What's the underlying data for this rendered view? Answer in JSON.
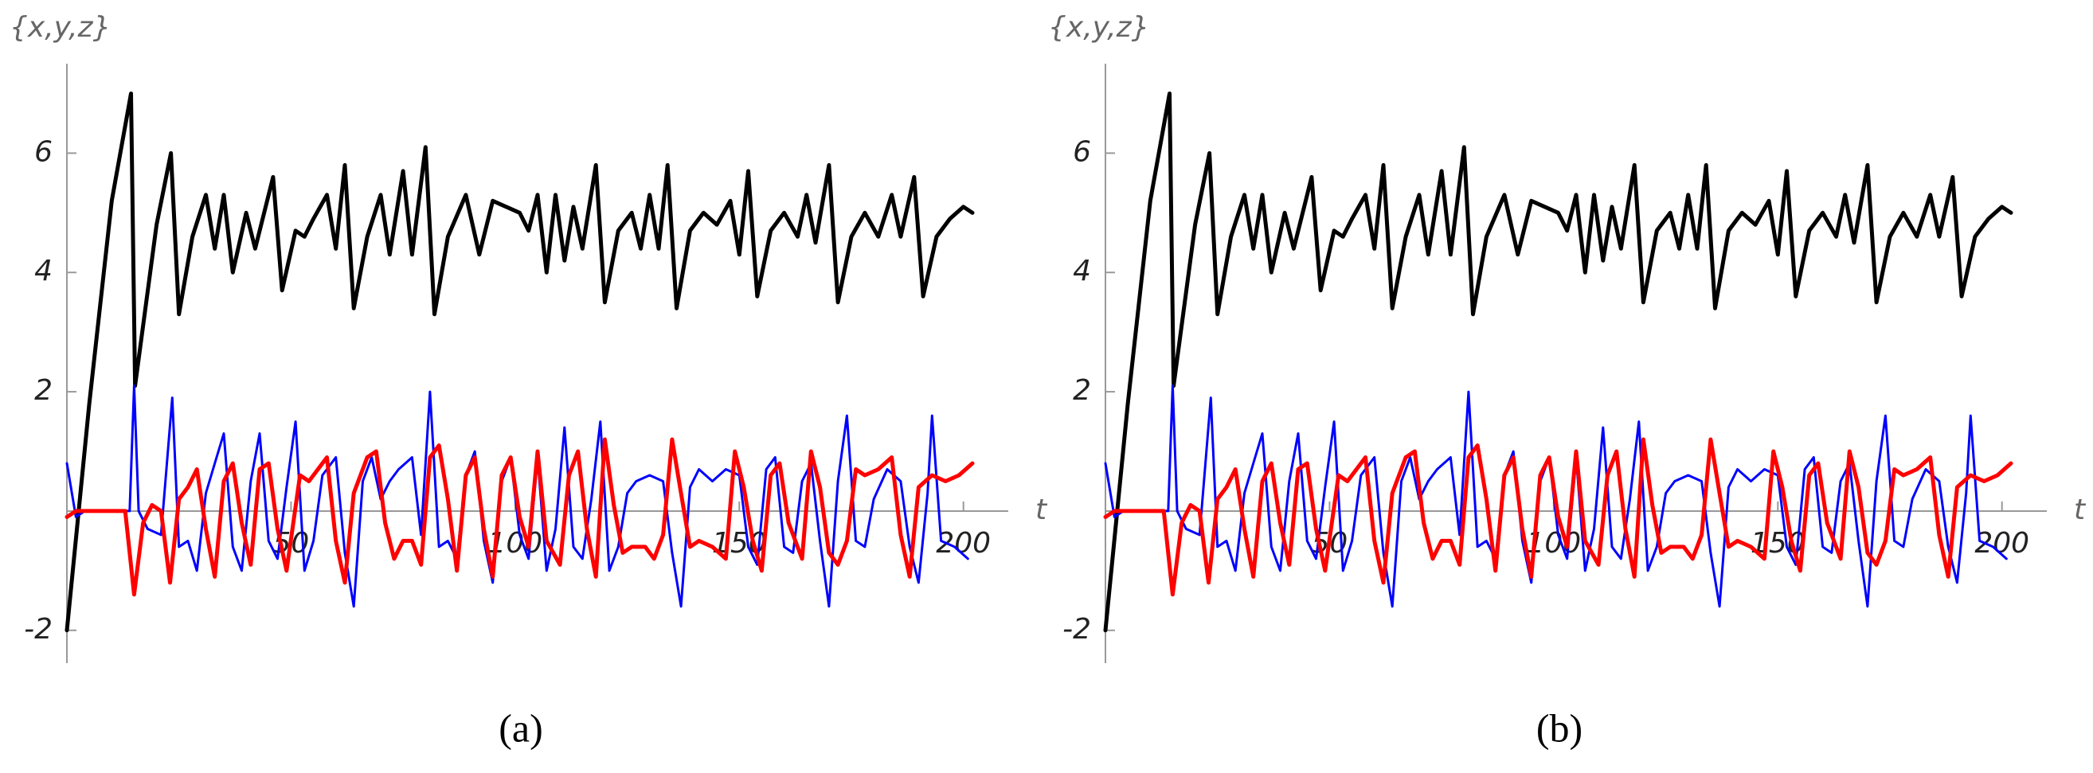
{
  "chart_data": [
    {
      "type": "line",
      "y_label": "{x,y,z}",
      "x_label": "t",
      "caption": "(a)",
      "xlim": [
        0,
        210
      ],
      "ylim": [
        -2.55,
        7.5
      ],
      "xticks": [
        50,
        100,
        150,
        200
      ],
      "yticks": [
        -2,
        2,
        4,
        6
      ],
      "series": [
        {
          "color": "#000000",
          "width": 5,
          "x": [
            0,
            5,
            10,
            14.3,
            15.2,
            20,
            23.2,
            25,
            28,
            31,
            33,
            35,
            37,
            40,
            42,
            46,
            48,
            51,
            53,
            55,
            58,
            60,
            62,
            64,
            67,
            70,
            72,
            75,
            77,
            80,
            82,
            85,
            89,
            92,
            95,
            98,
            101,
            103,
            105,
            107,
            109,
            111,
            113,
            115,
            118,
            120,
            123,
            126,
            128,
            130,
            132,
            134,
            136,
            139,
            142,
            145,
            148,
            150,
            152,
            154,
            157,
            160,
            163,
            165,
            167,
            170,
            172,
            175,
            178,
            181,
            184,
            186,
            189,
            191,
            194,
            197,
            200,
            202
          ],
          "values": [
            -2,
            1.8,
            5.2,
            7.0,
            2.1,
            4.8,
            6.0,
            3.3,
            4.6,
            5.3,
            4.4,
            5.3,
            4.0,
            5.0,
            4.4,
            5.6,
            3.7,
            4.7,
            4.6,
            4.9,
            5.3,
            4.4,
            5.8,
            3.4,
            4.6,
            5.3,
            4.3,
            5.7,
            4.3,
            6.1,
            3.3,
            4.6,
            5.3,
            4.3,
            5.2,
            5.1,
            5.0,
            4.7,
            5.3,
            4.0,
            5.3,
            4.2,
            5.1,
            4.4,
            5.8,
            3.5,
            4.7,
            5.0,
            4.4,
            5.3,
            4.4,
            5.8,
            3.4,
            4.7,
            5.0,
            4.8,
            5.2,
            4.3,
            5.7,
            3.6,
            4.7,
            5.0,
            4.6,
            5.3,
            4.5,
            5.8,
            3.5,
            4.6,
            5.0,
            4.6,
            5.3,
            4.6,
            5.6,
            3.6,
            4.6,
            4.9,
            5.1,
            5.0
          ]
        },
        {
          "color": "#0000ff",
          "width": 3,
          "x": [
            0,
            2,
            4,
            14,
            15,
            16,
            18,
            21,
            23.5,
            25,
            27,
            29,
            31,
            33,
            35,
            37,
            39,
            41,
            43,
            45,
            47,
            49,
            51,
            53,
            55,
            57,
            60,
            62,
            64,
            66,
            68,
            70,
            72,
            74,
            77,
            79,
            81,
            83,
            85,
            87,
            89,
            91,
            93,
            95,
            97,
            99,
            101,
            103,
            105,
            107,
            109,
            111,
            113,
            115,
            117,
            119,
            121,
            123,
            125,
            127,
            130,
            133,
            135,
            137,
            139,
            141,
            144,
            147,
            150,
            152,
            154,
            156,
            158,
            160,
            162,
            164,
            166,
            168,
            170,
            172,
            174,
            176,
            178,
            180,
            183,
            186,
            188,
            190,
            192,
            193,
            195,
            198,
            201
          ],
          "values": [
            0.8,
            -0.1,
            0,
            0,
            2.1,
            0,
            -0.3,
            -0.4,
            1.9,
            -0.6,
            -0.5,
            -1.0,
            0.3,
            0.8,
            1.3,
            -0.6,
            -1.0,
            0.5,
            1.3,
            -0.5,
            -0.8,
            0.4,
            1.5,
            -1.0,
            -0.5,
            0.6,
            0.9,
            -0.7,
            -1.6,
            0.5,
            0.9,
            0.2,
            0.5,
            0.7,
            0.9,
            -0.4,
            2.0,
            -0.6,
            -0.5,
            -0.8,
            0.6,
            1.0,
            -0.5,
            -1.2,
            0.5,
            0.9,
            -0.4,
            -0.8,
            0.9,
            -1.0,
            -0.3,
            1.4,
            -0.6,
            -0.8,
            0.2,
            1.5,
            -1.0,
            -0.6,
            0.3,
            0.5,
            0.6,
            0.5,
            -0.7,
            -1.6,
            0.4,
            0.7,
            0.5,
            0.7,
            0.6,
            -0.6,
            -0.9,
            0.7,
            0.9,
            -0.6,
            -0.7,
            0.5,
            0.8,
            -0.5,
            -1.6,
            0.5,
            1.6,
            -0.5,
            -0.6,
            0.2,
            0.7,
            0.5,
            -0.6,
            -1.2,
            0.3,
            1.6,
            -0.5,
            -0.6,
            -0.8
          ]
        },
        {
          "color": "#ff0000",
          "width": 5,
          "x": [
            0,
            2,
            13,
            15,
            17,
            19,
            21,
            23,
            25,
            27,
            29,
            31,
            33,
            35,
            37,
            39,
            41,
            43,
            45,
            47,
            49,
            52,
            54,
            56,
            58,
            60,
            62,
            64,
            67,
            69,
            71,
            73,
            75,
            77,
            79,
            81,
            83,
            85,
            87,
            89,
            91,
            93,
            95,
            97,
            99,
            101,
            103,
            105,
            107,
            110,
            112,
            114,
            116,
            118,
            120,
            122,
            124,
            126,
            129,
            131,
            133,
            135,
            137,
            139,
            141,
            144,
            147,
            149,
            151,
            153,
            155,
            157,
            159,
            161,
            164,
            166,
            168,
            170,
            172,
            174,
            176,
            178,
            181,
            184,
            186,
            188,
            190,
            193,
            196,
            199,
            202
          ],
          "values": [
            -0.1,
            0,
            0,
            -1.4,
            -0.2,
            0.1,
            0,
            -1.2,
            0.2,
            0.4,
            0.7,
            -0.3,
            -1.1,
            0.5,
            0.8,
            -0.2,
            -0.9,
            0.7,
            0.8,
            -0.3,
            -1.0,
            0.6,
            0.5,
            0.7,
            0.9,
            -0.5,
            -1.2,
            0.3,
            0.9,
            1.0,
            -0.2,
            -0.8,
            -0.5,
            -0.5,
            -0.9,
            0.9,
            1.1,
            0.2,
            -1.0,
            0.6,
            0.9,
            -0.3,
            -1.1,
            0.6,
            0.9,
            -0.1,
            -0.6,
            1.0,
            -0.5,
            -0.9,
            0.6,
            1.0,
            -0.3,
            -1.1,
            1.2,
            0.1,
            -0.7,
            -0.6,
            -0.6,
            -0.8,
            -0.4,
            1.2,
            0.3,
            -0.6,
            -0.5,
            -0.6,
            -0.8,
            1.0,
            0.4,
            -0.5,
            -1.0,
            0.6,
            0.8,
            -0.2,
            -0.8,
            1.0,
            0.4,
            -0.7,
            -0.9,
            -0.5,
            0.7,
            0.6,
            0.7,
            0.9,
            -0.4,
            -1.1,
            0.4,
            0.6,
            0.5,
            0.6,
            0.8
          ]
        }
      ]
    },
    {
      "type": "line",
      "y_label": "{x,y,z}",
      "x_label": "t",
      "caption": "(b)",
      "xlim": [
        0,
        210
      ],
      "ylim": [
        -2.55,
        7.5
      ],
      "xticks": [
        50,
        100,
        150,
        200
      ],
      "yticks": [
        -2,
        2,
        4,
        6
      ],
      "series": [
        {
          "color": "#000000",
          "width": 5,
          "x": [
            0,
            5,
            10,
            14.3,
            15.2,
            20,
            23.2,
            25,
            28,
            31,
            33,
            35,
            37,
            40,
            42,
            46,
            48,
            51,
            53,
            55,
            58,
            60,
            62,
            64,
            67,
            70,
            72,
            75,
            77,
            80,
            82,
            85,
            89,
            92,
            95,
            98,
            101,
            103,
            105,
            107,
            109,
            111,
            113,
            115,
            118,
            120,
            123,
            126,
            128,
            130,
            132,
            134,
            136,
            139,
            142,
            145,
            148,
            150,
            152,
            154,
            157,
            160,
            163,
            165,
            167,
            170,
            172,
            175,
            178,
            181,
            184,
            186,
            189,
            191,
            194,
            197,
            200,
            202
          ],
          "values": [
            -2,
            1.8,
            5.2,
            7.0,
            2.1,
            4.8,
            6.0,
            3.3,
            4.6,
            5.3,
            4.4,
            5.3,
            4.0,
            5.0,
            4.4,
            5.6,
            3.7,
            4.7,
            4.6,
            4.9,
            5.3,
            4.4,
            5.8,
            3.4,
            4.6,
            5.3,
            4.3,
            5.7,
            4.3,
            6.1,
            3.3,
            4.6,
            5.3,
            4.3,
            5.2,
            5.1,
            5.0,
            4.7,
            5.3,
            4.0,
            5.3,
            4.2,
            5.1,
            4.4,
            5.8,
            3.5,
            4.7,
            5.0,
            4.4,
            5.3,
            4.4,
            5.8,
            3.4,
            4.7,
            5.0,
            4.8,
            5.2,
            4.3,
            5.7,
            3.6,
            4.7,
            5.0,
            4.6,
            5.3,
            4.5,
            5.8,
            3.5,
            4.6,
            5.0,
            4.6,
            5.3,
            4.6,
            5.6,
            3.6,
            4.6,
            4.9,
            5.1,
            5.0
          ]
        },
        {
          "color": "#0000ff",
          "width": 3,
          "x": [
            0,
            2,
            4,
            14,
            15,
            16,
            18,
            21,
            23.5,
            25,
            27,
            29,
            31,
            33,
            35,
            37,
            39,
            41,
            43,
            45,
            47,
            49,
            51,
            53,
            55,
            57,
            60,
            62,
            64,
            66,
            68,
            70,
            72,
            74,
            77,
            79,
            81,
            83,
            85,
            87,
            89,
            91,
            93,
            95,
            97,
            99,
            101,
            103,
            105,
            107,
            109,
            111,
            113,
            115,
            117,
            119,
            121,
            123,
            125,
            127,
            130,
            133,
            135,
            137,
            139,
            141,
            144,
            147,
            150,
            152,
            154,
            156,
            158,
            160,
            162,
            164,
            166,
            168,
            170,
            172,
            174,
            176,
            178,
            180,
            183,
            186,
            188,
            190,
            192,
            193,
            195,
            198,
            201
          ],
          "values": [
            0.8,
            -0.1,
            0,
            0,
            2.1,
            0,
            -0.3,
            -0.4,
            1.9,
            -0.6,
            -0.5,
            -1.0,
            0.3,
            0.8,
            1.3,
            -0.6,
            -1.0,
            0.5,
            1.3,
            -0.5,
            -0.8,
            0.4,
            1.5,
            -1.0,
            -0.5,
            0.6,
            0.9,
            -0.7,
            -1.6,
            0.5,
            0.9,
            0.2,
            0.5,
            0.7,
            0.9,
            -0.4,
            2.0,
            -0.6,
            -0.5,
            -0.8,
            0.6,
            1.0,
            -0.5,
            -1.2,
            0.5,
            0.9,
            -0.4,
            -0.8,
            0.9,
            -1.0,
            -0.3,
            1.4,
            -0.6,
            -0.8,
            0.2,
            1.5,
            -1.0,
            -0.6,
            0.3,
            0.5,
            0.6,
            0.5,
            -0.7,
            -1.6,
            0.4,
            0.7,
            0.5,
            0.7,
            0.6,
            -0.6,
            -0.9,
            0.7,
            0.9,
            -0.6,
            -0.7,
            0.5,
            0.8,
            -0.5,
            -1.6,
            0.5,
            1.6,
            -0.5,
            -0.6,
            0.2,
            0.7,
            0.5,
            -0.6,
            -1.2,
            0.3,
            1.6,
            -0.5,
            -0.6,
            -0.8
          ]
        },
        {
          "color": "#ff0000",
          "width": 5,
          "x": [
            0,
            2,
            13,
            15,
            17,
            19,
            21,
            23,
            25,
            27,
            29,
            31,
            33,
            35,
            37,
            39,
            41,
            43,
            45,
            47,
            49,
            52,
            54,
            56,
            58,
            60,
            62,
            64,
            67,
            69,
            71,
            73,
            75,
            77,
            79,
            81,
            83,
            85,
            87,
            89,
            91,
            93,
            95,
            97,
            99,
            101,
            103,
            105,
            107,
            110,
            112,
            114,
            116,
            118,
            120,
            122,
            124,
            126,
            129,
            131,
            133,
            135,
            137,
            139,
            141,
            144,
            147,
            149,
            151,
            153,
            155,
            157,
            159,
            161,
            164,
            166,
            168,
            170,
            172,
            174,
            176,
            178,
            181,
            184,
            186,
            188,
            190,
            193,
            196,
            199,
            202
          ],
          "values": [
            -0.1,
            0,
            0,
            -1.4,
            -0.2,
            0.1,
            0,
            -1.2,
            0.2,
            0.4,
            0.7,
            -0.3,
            -1.1,
            0.5,
            0.8,
            -0.2,
            -0.9,
            0.7,
            0.8,
            -0.3,
            -1.0,
            0.6,
            0.5,
            0.7,
            0.9,
            -0.5,
            -1.2,
            0.3,
            0.9,
            1.0,
            -0.2,
            -0.8,
            -0.5,
            -0.5,
            -0.9,
            0.9,
            1.1,
            0.2,
            -1.0,
            0.6,
            0.9,
            -0.3,
            -1.1,
            0.6,
            0.9,
            -0.1,
            -0.6,
            1.0,
            -0.5,
            -0.9,
            0.6,
            1.0,
            -0.3,
            -1.1,
            1.2,
            0.1,
            -0.7,
            -0.6,
            -0.6,
            -0.8,
            -0.4,
            1.2,
            0.3,
            -0.6,
            -0.5,
            -0.6,
            -0.8,
            1.0,
            0.4,
            -0.5,
            -1.0,
            0.6,
            0.8,
            -0.2,
            -0.8,
            1.0,
            0.4,
            -0.7,
            -0.9,
            -0.5,
            0.7,
            0.6,
            0.7,
            0.9,
            -0.4,
            -1.1,
            0.4,
            0.6,
            0.5,
            0.6,
            0.8
          ]
        }
      ]
    }
  ]
}
